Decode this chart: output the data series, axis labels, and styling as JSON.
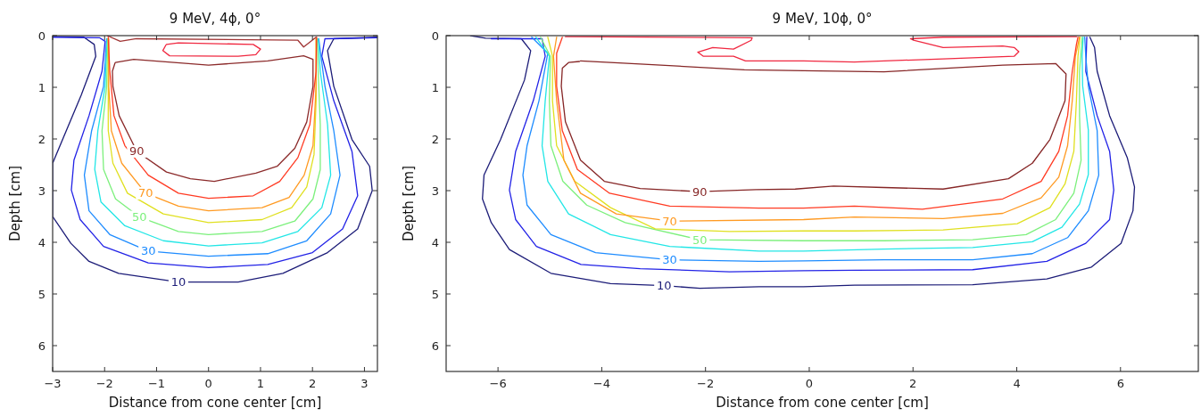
{
  "chart_data": [
    {
      "type": "line",
      "title": "9 MeV, 4ϕ, 0°",
      "xlabel": "Distance from cone center [cm]",
      "ylabel": "Depth [cm]",
      "xlim": [
        -3,
        3.25
      ],
      "ylim": [
        6.5,
        0
      ],
      "xticks": [
        -3,
        -2,
        -1,
        0,
        1,
        2,
        3
      ],
      "yticks": [
        0,
        1,
        2,
        3,
        4,
        5,
        6
      ],
      "series": [
        {
          "name": "10",
          "color": "#1c1c78",
          "x": [
            -3,
            -2.4,
            -2.2,
            -2.17,
            -2.45,
            -3,
            -3,
            -2.65,
            -2.3,
            -1.73,
            -0.58,
            0.57,
            1.43,
            2.29,
            2.87,
            3.15,
            3.1,
            2.76,
            2.41,
            2.29,
            2.41,
            3.25
          ],
          "values": [
            0.02,
            0.03,
            0.17,
            0.4,
            1.15,
            2.47,
            3.5,
            4.02,
            4.37,
            4.6,
            4.77,
            4.77,
            4.6,
            4.2,
            3.74,
            3,
            2.53,
            2.01,
            0.98,
            0.29,
            0.06,
            0.03
          ]
        },
        {
          "color": "#2222e6",
          "x": [
            -3,
            -2.1,
            -1.99,
            -2.05,
            -2.3,
            -2.59,
            -2.64,
            -2.47,
            -2.02,
            -1.16,
            0,
            1.14,
            2,
            2.58,
            2.87,
            2.76,
            2.41,
            2.18,
            2.24,
            3.25
          ],
          "values": [
            0.03,
            0.04,
            0.11,
            0.69,
            1.55,
            2.41,
            2.99,
            3.56,
            4.08,
            4.4,
            4.49,
            4.43,
            4.2,
            3.74,
            3.1,
            2.24,
            1.26,
            0.4,
            0.06,
            0.04
          ]
        },
        {
          "name": "30",
          "color": "#1e8cff",
          "x": [
            -1.96,
            -2.02,
            -2.25,
            -2.39,
            -2.3,
            -1.9,
            -1.16,
            0,
            1.14,
            1.89,
            2.35,
            2.53,
            2.41,
            2.24,
            2.12
          ],
          "values": [
            0.06,
            0.98,
            1.84,
            2.7,
            3.39,
            3.85,
            4.17,
            4.27,
            4.22,
            3.97,
            3.45,
            2.7,
            1.84,
            0.98,
            0.06
          ]
        },
        {
          "color": "#22e6e6",
          "x": [
            -1.95,
            -1.99,
            -2.13,
            -2.19,
            -2.07,
            -1.61,
            -0.87,
            0,
            1.03,
            1.72,
            2.18,
            2.35,
            2.29,
            2.15,
            2.11
          ],
          "values": [
            0.06,
            0.98,
            1.84,
            2.59,
            3.22,
            3.68,
            3.97,
            4.07,
            4.01,
            3.79,
            3.33,
            2.7,
            1.72,
            0.69,
            0.06
          ]
        },
        {
          "name": "50",
          "color": "#7cf07c",
          "x": [
            -1.94,
            -1.96,
            -2.05,
            -2.02,
            -1.79,
            -1.33,
            -0.58,
            0,
            1.03,
            1.66,
            2.01,
            2.15,
            2.15,
            2.11,
            2.09
          ],
          "values": [
            0.06,
            0.98,
            1.84,
            2.59,
            3.16,
            3.51,
            3.79,
            3.85,
            3.79,
            3.59,
            3.16,
            2.59,
            1.72,
            0.69,
            0.06
          ]
        },
        {
          "color": "#e0e020",
          "x": [
            -1.93,
            -1.93,
            -1.93,
            -1.84,
            -1.56,
            -0.87,
            0,
            1.03,
            1.6,
            1.89,
            2.03,
            2.07,
            2.07
          ],
          "values": [
            0.06,
            0.98,
            1.84,
            2.47,
            3.05,
            3.45,
            3.62,
            3.56,
            3.33,
            2.93,
            2.3,
            1.26,
            0.06
          ]
        },
        {
          "name": "70",
          "color": "#ff9a22",
          "x": [
            -1.92,
            -1.92,
            -1.87,
            -1.67,
            -1.21,
            -0.58,
            0,
            1.03,
            1.55,
            1.84,
            2.01,
            2.07,
            2.07
          ],
          "values": [
            0.06,
            0.98,
            1.84,
            2.47,
            3.05,
            3.3,
            3.39,
            3.33,
            3.13,
            2.7,
            2.13,
            0.98,
            0.06
          ]
        },
        {
          "color": "#ff3a22",
          "x": [
            -1.93,
            -1.9,
            -1.82,
            -1.61,
            -1.16,
            -0.58,
            0,
            0.86,
            1.37,
            1.72,
            1.95,
            2.07,
            2.08
          ],
          "values": [
            0.03,
            0.69,
            1.55,
            2.13,
            2.7,
            3.05,
            3.15,
            3.1,
            2.82,
            2.36,
            1.72,
            0.69,
            0.03
          ]
        },
        {
          "name": "90",
          "color": "#8b2a2a",
          "x": [
            -1.79,
            -1.44,
            0,
            1.14,
            1.83,
            2.01,
            2.01,
            1.89,
            1.66,
            1.32,
            0.91,
            0.11,
            -0.35,
            -0.81,
            -1.38,
            -1.72,
            -1.84,
            -1.85,
            -1.8
          ],
          "values": [
            0.52,
            0.46,
            0.57,
            0.49,
            0.39,
            0.46,
            0.98,
            1.67,
            2.18,
            2.53,
            2.66,
            2.82,
            2.77,
            2.64,
            2.24,
            1.55,
            0.98,
            0.69,
            0.53
          ]
        },
        {
          "color": "#a03434",
          "x": [
            -1.95,
            -1.7,
            -1.39,
            1.72,
            1.83,
            2.07
          ],
          "values": [
            0,
            0.11,
            0.06,
            0.09,
            0.22,
            0.03
          ]
        },
        {
          "color": "#f02840",
          "x": [
            -0.81,
            -0.58,
            0.86,
            1,
            0.91,
            0.57,
            -0.75,
            -0.88,
            -0.82
          ],
          "values": [
            0.17,
            0.14,
            0.17,
            0.26,
            0.37,
            0.4,
            0.39,
            0.29,
            0.18
          ]
        }
      ]
    },
    {
      "type": "line",
      "title": "9 MeV, 10ϕ, 0°",
      "xlabel": "Distance from cone center [cm]",
      "ylabel": "Depth [cm]",
      "xlim": [
        -7,
        7.5
      ],
      "ylim": [
        6.5,
        0
      ],
      "xticks": [
        -6,
        -4,
        -2,
        0,
        2,
        4,
        6
      ],
      "yticks": [
        0,
        1,
        2,
        3,
        4,
        5,
        6
      ],
      "series": [
        {
          "name": "10",
          "color": "#1c1c78",
          "x": [
            -6.53,
            -6.24,
            -5.55,
            -5.37,
            -5.49,
            -5.95,
            -6.27,
            -6.3,
            -6.13,
            -5.78,
            -4.98,
            -3.83,
            -2.8,
            -2.11,
            -0.97,
            -0.11,
            0.87,
            3.15,
            4.58,
            5.44,
            6.01,
            6.24,
            6.27,
            6.13,
            5.79,
            5.55,
            5.5,
            5.41
          ],
          "values": [
            0,
            0.05,
            0.06,
            0.29,
            0.86,
            2.01,
            2.7,
            3.16,
            3.62,
            4.14,
            4.6,
            4.8,
            4.84,
            4.89,
            4.86,
            4.86,
            4.83,
            4.82,
            4.71,
            4.48,
            4.02,
            3.39,
            2.93,
            2.36,
            1.55,
            0.69,
            0.23,
            0.03
          ]
        },
        {
          "color": "#2222e6",
          "x": [
            -6.13,
            -5.15,
            -5.09,
            -5.32,
            -5.66,
            -5.78,
            -5.66,
            -5.26,
            -4.4,
            -3.26,
            -1.54,
            -0.11,
            0.87,
            3.15,
            4.58,
            5.33,
            5.79,
            5.87,
            5.79,
            5.55,
            5.33,
            5.35
          ],
          "values": [
            0.06,
            0.06,
            0.4,
            1.26,
            2.24,
            2.99,
            3.56,
            4.08,
            4.43,
            4.51,
            4.57,
            4.55,
            4.54,
            4.53,
            4.37,
            4.02,
            3.56,
            2.99,
            2.24,
            1.55,
            0.69,
            0.03
          ]
        },
        {
          "name": "30",
          "color": "#1e8cff",
          "x": [
            -5.35,
            -5.04,
            -5.21,
            -5.44,
            -5.52,
            -5.44,
            -4.98,
            -4.12,
            -2.69,
            -0.97,
            -0.11,
            1.44,
            3.15,
            4.3,
            4.98,
            5.38,
            5.58,
            5.55,
            5.38,
            5.33,
            5.31
          ],
          "values": [
            0.03,
            0.34,
            1.26,
            2.13,
            2.7,
            3.28,
            3.85,
            4.2,
            4.34,
            4.37,
            4.36,
            4.34,
            4.34,
            4.22,
            3.91,
            3.39,
            2.7,
            1.84,
            0.98,
            0.4,
            0.03
          ]
        },
        {
          "color": "#22e6e6",
          "x": [
            -5.27,
            -5.01,
            -5.09,
            -5.15,
            -5.04,
            -4.64,
            -3.83,
            -2.69,
            -0.97,
            -0.11,
            1.44,
            3.15,
            4.3,
            4.87,
            5.21,
            5.38,
            5.38,
            5.27,
            5.26,
            5.28
          ],
          "values": [
            0.03,
            0.4,
            1.26,
            2.13,
            2.82,
            3.45,
            3.85,
            4.08,
            4.17,
            4.17,
            4.13,
            4.1,
            3.99,
            3.71,
            3.26,
            2.69,
            1.83,
            0.97,
            0.4,
            0.03
          ]
        },
        {
          "name": "50",
          "color": "#7cf07c",
          "x": [
            -5.18,
            -4.99,
            -5.01,
            -4.98,
            -4.75,
            -4.29,
            -3.55,
            -2.11,
            -0.11,
            1.44,
            3.15,
            4.18,
            4.75,
            5.1,
            5.24,
            5.21,
            5.21,
            5.26
          ],
          "values": [
            0.03,
            0.4,
            1.26,
            2.13,
            2.82,
            3.28,
            3.62,
            3.95,
            3.97,
            3.97,
            3.95,
            3.85,
            3.56,
            3.05,
            2.41,
            1.55,
            0.69,
            0.03
          ]
        },
        {
          "color": "#e0e020",
          "x": [
            -5.04,
            -4.95,
            -4.95,
            -4.87,
            -4.52,
            -3.83,
            -2.97,
            -1.54,
            -0.11,
            0.87,
            2.58,
            4.01,
            4.64,
            4.93,
            5.1,
            5.15,
            5.18,
            5.22
          ],
          "values": [
            0.03,
            0.4,
            1.26,
            2.13,
            2.82,
            3.33,
            3.74,
            3.79,
            3.78,
            3.78,
            3.76,
            3.64,
            3.33,
            2.87,
            2.24,
            1.26,
            0.4,
            0.03
          ]
        },
        {
          "name": "70",
          "color": "#ff9a22",
          "x": [
            -4.87,
            -4.93,
            -4.87,
            -4.73,
            -4.41,
            -3.72,
            -2.69,
            -0.11,
            0.87,
            2.58,
            3.73,
            4.47,
            4.81,
            4.98,
            5.07,
            5.13,
            5.21
          ],
          "values": [
            0.03,
            0.4,
            1.26,
            2.41,
            3.05,
            3.45,
            3.59,
            3.56,
            3.51,
            3.54,
            3.44,
            3.14,
            2.74,
            2.13,
            1.26,
            0.4,
            0.03
          ]
        },
        {
          "color": "#ff3a22",
          "x": [
            -4.76,
            -4.87,
            -4.87,
            -4.76,
            -4.47,
            -3.85,
            -2.69,
            -0.97,
            -0.11,
            0.87,
            2.18,
            3.73,
            4.47,
            4.81,
            4.98,
            5.07,
            5.15,
            5.18
          ],
          "values": [
            0.03,
            0.34,
            0.98,
            1.84,
            2.59,
            3.05,
            3.3,
            3.34,
            3.34,
            3.3,
            3.36,
            3.16,
            2.82,
            2.24,
            1.55,
            0.69,
            0.17,
            0.03
          ]
        },
        {
          "name": "90",
          "color": "#862626",
          "x": [
            -4.41,
            -3.26,
            -1.25,
            -0.11,
            1.44,
            3.73,
            4.75,
            4.95,
            4.93,
            4.64,
            4.3,
            3.84,
            2.58,
            1.44,
            0.47,
            -0.27,
            -1.03,
            -2.11,
            -3.26,
            -3.95,
            -4.41,
            -4.7,
            -4.78,
            -4.76,
            -4.64,
            -4.43
          ],
          "values": [
            0.49,
            0.55,
            0.66,
            0.68,
            0.7,
            0.57,
            0.54,
            0.74,
            1.26,
            2.01,
            2.47,
            2.77,
            2.97,
            2.94,
            2.91,
            2.97,
            2.98,
            3.02,
            2.96,
            2.82,
            2.41,
            1.67,
            0.98,
            0.63,
            0.52,
            0.5
          ]
        },
        {
          "color": "#f02840",
          "x": [
            -4.7,
            -1.1,
            -1.12,
            -1.46,
            -1.86,
            -2.15,
            -2.04,
            -1.46,
            -1.23,
            -0.11,
            0.87,
            2.58,
            3.95,
            4.04,
            3.95,
            3.73,
            2.58,
            2.01,
            1.95,
            2.58,
            5.15
          ],
          "values": [
            0.02,
            0.04,
            0.09,
            0.26,
            0.23,
            0.32,
            0.4,
            0.4,
            0.49,
            0.49,
            0.51,
            0.45,
            0.4,
            0.31,
            0.23,
            0.2,
            0.23,
            0.09,
            0.06,
            0.03,
            0.02
          ]
        }
      ]
    }
  ]
}
